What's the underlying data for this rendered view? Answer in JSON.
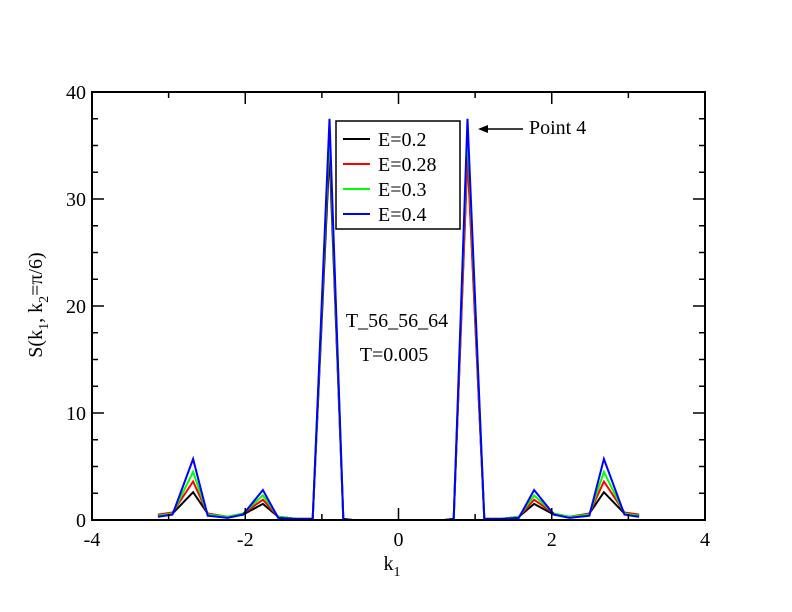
{
  "chart_data": {
    "type": "line",
    "xlabel": "k",
    "xlabel_sub": "1",
    "ylabel_parts": [
      "S(k",
      "1",
      ", k",
      "2",
      "=π/6)"
    ],
    "xlim": [
      -4,
      4
    ],
    "ylim": [
      0,
      40
    ],
    "xticks": [
      -4,
      -2,
      0,
      2,
      4
    ],
    "xtick_labels": [
      "-4",
      "-2",
      "0",
      "2",
      "4"
    ],
    "yticks": [
      0,
      10,
      20,
      30,
      40
    ],
    "ytick_labels": [
      "0",
      "10",
      "20",
      "30",
      "40"
    ],
    "grid": false,
    "legend_position": "top-center",
    "annotations": {
      "label1": "T_56_56_64",
      "label2": "T=0.005",
      "arrow_label": "Point 4",
      "arrow_target": [
        0.9,
        36.5
      ]
    },
    "x": [
      -3.14,
      -2.95,
      -2.68,
      -2.49,
      -2.23,
      -2.03,
      -1.77,
      -1.57,
      -1.34,
      -1.12,
      -0.9,
      -0.72,
      -0.6,
      0.6,
      0.72,
      0.9,
      1.12,
      1.34,
      1.57,
      1.77,
      2.03,
      2.23,
      2.49,
      2.68,
      2.95,
      3.14
    ],
    "series": [
      {
        "name": "E=0.2",
        "color": "#000000",
        "values": [
          0.4,
          0.6,
          2.6,
          0.6,
          0.3,
          0.5,
          1.5,
          0.3,
          0.1,
          0.1,
          34.5,
          0.1,
          0.0,
          0.0,
          0.1,
          34.5,
          0.1,
          0.1,
          0.3,
          1.5,
          0.5,
          0.3,
          0.6,
          2.6,
          0.6,
          0.4
        ]
      },
      {
        "name": "E=0.28",
        "color": "#ff0000",
        "values": [
          0.5,
          0.7,
          3.6,
          0.6,
          0.3,
          0.6,
          1.9,
          0.3,
          0.1,
          0.1,
          36.0,
          0.1,
          0.0,
          0.0,
          0.1,
          34.0,
          0.1,
          0.1,
          0.3,
          1.9,
          0.6,
          0.3,
          0.6,
          3.6,
          0.7,
          0.5
        ]
      },
      {
        "name": "E=0.3",
        "color": "#00ff00",
        "values": [
          0.4,
          0.6,
          4.5,
          0.5,
          0.3,
          0.6,
          2.3,
          0.3,
          0.1,
          0.1,
          36.5,
          0.1,
          0.0,
          0.0,
          0.1,
          36.5,
          0.1,
          0.1,
          0.3,
          2.3,
          0.6,
          0.3,
          0.5,
          4.5,
          0.6,
          0.4
        ]
      },
      {
        "name": "E=0.4",
        "color": "#0000ff",
        "values": [
          0.3,
          0.5,
          5.7,
          0.4,
          0.2,
          0.5,
          2.8,
          0.2,
          0.1,
          0.1,
          37.5,
          0.1,
          0.0,
          0.0,
          0.1,
          37.5,
          0.1,
          0.1,
          0.2,
          2.8,
          0.5,
          0.2,
          0.4,
          5.7,
          0.5,
          0.3
        ]
      }
    ]
  }
}
